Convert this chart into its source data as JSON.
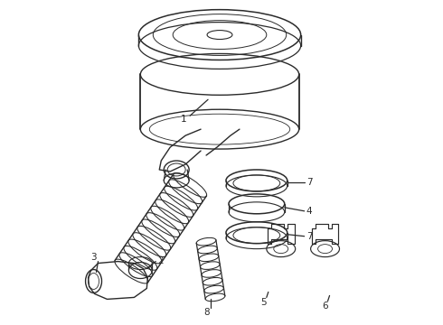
{
  "bg_color": "#ffffff",
  "line_color": "#2a2a2a",
  "lw": 0.9,
  "figsize": [
    4.9,
    3.6
  ],
  "dpi": 100,
  "label_fs": 7.5
}
